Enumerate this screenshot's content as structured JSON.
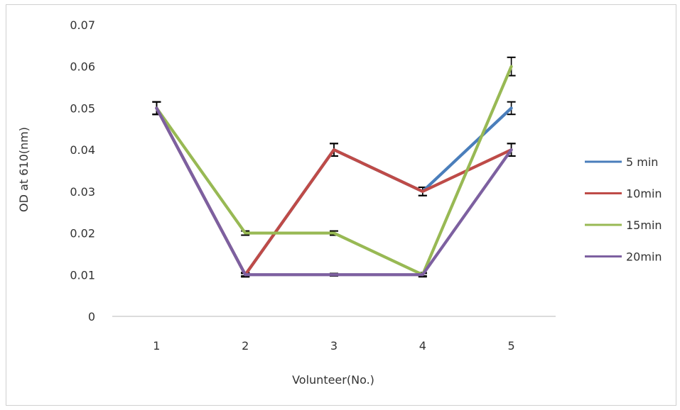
{
  "chart_data": {
    "type": "line",
    "title": "",
    "xlabel": "Volunteer(No.)",
    "ylabel": "OD at 610(nm)",
    "categories": [
      "1",
      "2",
      "3",
      "4",
      "5"
    ],
    "ylim": [
      0,
      0.07
    ],
    "yticks": [
      0,
      0.01,
      0.02,
      0.03,
      0.04,
      0.05,
      0.06,
      0.07
    ],
    "ytick_labels": [
      "0",
      "0.01",
      "0.02",
      "0.03",
      "0.04",
      "0.05",
      "0.06",
      "0.07"
    ],
    "grid": false,
    "legend_position": "right",
    "series": [
      {
        "name": "5 min",
        "color": "#4a7ebb",
        "values": [
          0.05,
          0.01,
          0.04,
          0.03,
          0.05
        ],
        "errors": [
          0.0015,
          0.0005,
          0.0015,
          0.001,
          0.0015
        ]
      },
      {
        "name": "10min",
        "color": "#be4b48",
        "values": [
          0.05,
          0.01,
          0.04,
          0.03,
          0.04
        ],
        "errors": [
          0.0015,
          0.0005,
          0.0015,
          0.001,
          0.0015
        ]
      },
      {
        "name": "15min",
        "color": "#98b954",
        "values": [
          0.05,
          0.02,
          0.02,
          0.01,
          0.06
        ],
        "errors": [
          0.0015,
          0.0005,
          0.0005,
          0.0005,
          0.0022
        ]
      },
      {
        "name": "20min",
        "color": "#7d60a0",
        "values": [
          0.05,
          0.01,
          0.01,
          0.01,
          0.04
        ],
        "errors": [
          0.0015,
          0.0003,
          0.0003,
          0.0003,
          0.0015
        ]
      }
    ]
  }
}
